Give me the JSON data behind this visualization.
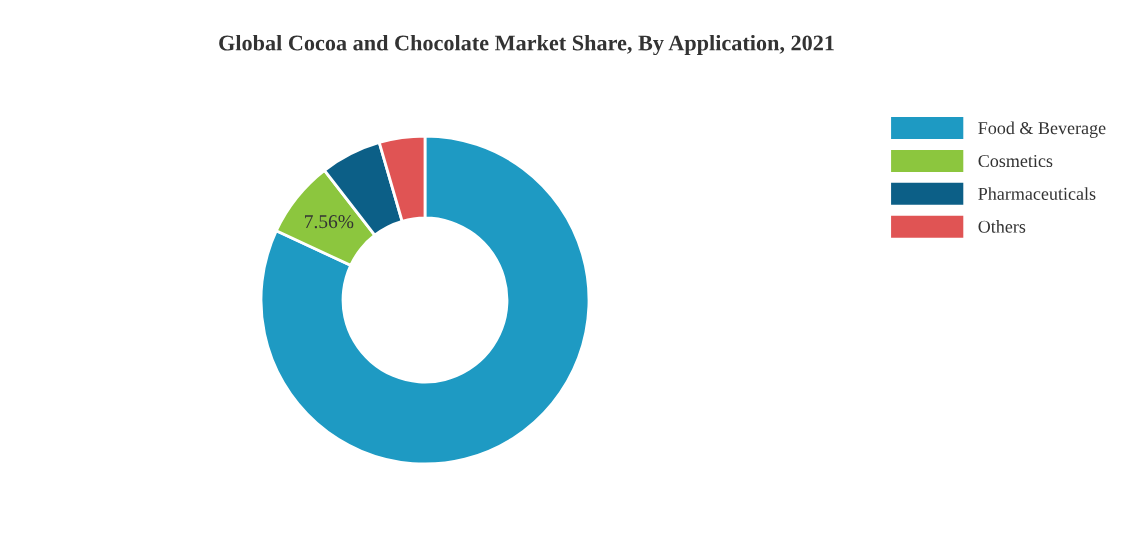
{
  "chart_data": {
    "type": "donut",
    "title": "Global Cocoa and Chocolate Market Share, By Application, 2021",
    "categories": [
      "Food & Beverage",
      "Cosmetics",
      "Pharmaceuticals",
      "Others"
    ],
    "values": [
      81.94,
      7.56,
      6.0,
      4.5
    ],
    "colors": [
      "#1e9ac3",
      "#8cc63e",
      "#0c5f87",
      "#e05454"
    ],
    "value_labels": [
      null,
      "7.56%",
      null,
      null
    ],
    "legend": "top right"
  }
}
